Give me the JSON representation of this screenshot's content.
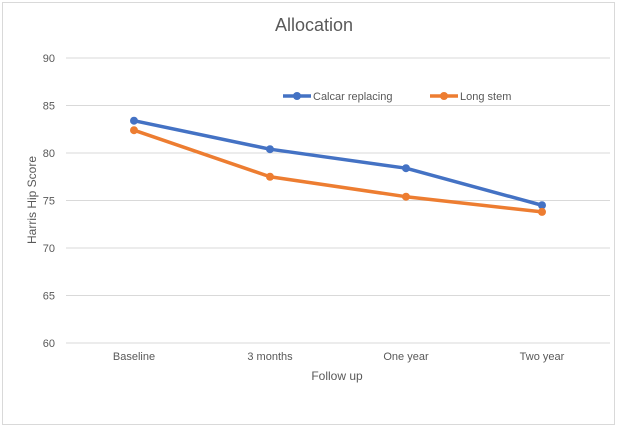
{
  "chart_data": {
    "type": "line",
    "title": "Allocation",
    "xlabel": "Follow up",
    "ylabel": "Harris Hip Score",
    "categories": [
      "Baseline",
      "3  months",
      "One year",
      "Two year"
    ],
    "ylim": [
      60,
      90
    ],
    "yticks": [
      60,
      65,
      70,
      75,
      80,
      85,
      90
    ],
    "grid": true,
    "legend_position": "top-right",
    "series": [
      {
        "name": "Calcar replacing",
        "color": "#4472c4",
        "values": [
          83.4,
          80.4,
          78.4,
          74.5
        ]
      },
      {
        "name": "Long stem",
        "color": "#ed7d31",
        "values": [
          82.4,
          77.5,
          75.4,
          73.8
        ]
      }
    ]
  }
}
